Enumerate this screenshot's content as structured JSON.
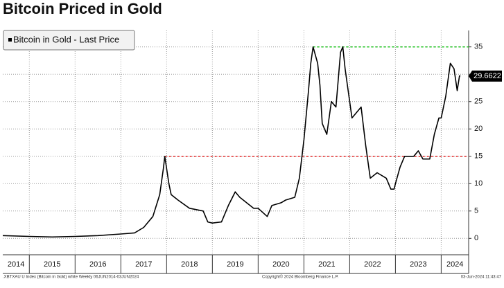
{
  "chart_data": {
    "type": "line",
    "title": "Bitcoin Priced in Gold",
    "legend": "Bitcoin in Gold - Last Price",
    "footer_left": ".XBTXAU U Index (Bitcoin in Gold) white  Weekly 06JUN2014-03JUN2024",
    "footer_center": "Copyright© 2024 Bloomberg Finance L.P.",
    "footer_right": "03-Jun-2024 11:43:47",
    "x": [
      2014.42,
      2015.0,
      2015.5,
      2016.0,
      2016.5,
      2017.0,
      2017.3,
      2017.5,
      2017.7,
      2017.85,
      2017.93,
      2017.96,
      2018.05,
      2018.1,
      2018.25,
      2018.5,
      2018.8,
      2018.9,
      2019.0,
      2019.2,
      2019.35,
      2019.5,
      2019.6,
      2019.75,
      2019.9,
      2020.0,
      2020.2,
      2020.3,
      2020.5,
      2020.6,
      2020.8,
      2020.9,
      2021.0,
      2021.1,
      2021.15,
      2021.2,
      2021.3,
      2021.35,
      2021.4,
      2021.5,
      2021.6,
      2021.7,
      2021.8,
      2021.85,
      2021.9,
      2022.0,
      2022.05,
      2022.15,
      2022.25,
      2022.35,
      2022.45,
      2022.6,
      2022.8,
      2022.9,
      2022.97,
      2023.0,
      2023.1,
      2023.2,
      2023.4,
      2023.5,
      2023.6,
      2023.75,
      2023.85,
      2023.95,
      2024.0,
      2024.1,
      2024.2,
      2024.28,
      2024.35,
      2024.4,
      2024.42
    ],
    "series": [
      {
        "name": "Bitcoin in Gold - Last Price",
        "color": "#000000",
        "values": [
          0.5,
          0.35,
          0.25,
          0.35,
          0.5,
          0.8,
          1.0,
          2.0,
          4,
          8,
          12.8,
          15.0,
          10,
          8,
          7,
          5.5,
          5.0,
          3.0,
          2.8,
          3.0,
          6,
          8.5,
          7.5,
          6.5,
          5.5,
          5.5,
          4.0,
          6.0,
          6.5,
          7,
          7.5,
          11,
          18,
          27,
          32,
          35,
          32,
          28,
          21,
          19,
          25,
          24,
          34,
          35,
          31,
          25,
          22,
          23,
          24,
          17,
          11,
          12,
          11,
          9,
          9,
          10,
          13,
          15,
          15,
          16,
          14.5,
          14.5,
          19,
          22,
          22,
          26,
          32,
          31,
          27,
          29.7,
          29.6622
        ]
      }
    ],
    "reference_lines": [
      {
        "value": 35,
        "start": 2021.2,
        "color": "#22cc22"
      },
      {
        "value": 15,
        "start": 2017.96,
        "color": "#e02020"
      }
    ],
    "xlim": [
      2014.42,
      2024.6
    ],
    "xticks": [
      2015,
      2016,
      2017,
      2018,
      2019,
      2020,
      2021,
      2022,
      2023,
      2024
    ],
    "year_labels": [
      "2014",
      "2015",
      "2016",
      "2017",
      "2018",
      "2019",
      "2020",
      "2021",
      "2022",
      "2023",
      "2024"
    ],
    "ylim": [
      -3,
      38
    ],
    "yticks": [
      0,
      5,
      10,
      15,
      20,
      25,
      30,
      35
    ],
    "grid": true
  }
}
